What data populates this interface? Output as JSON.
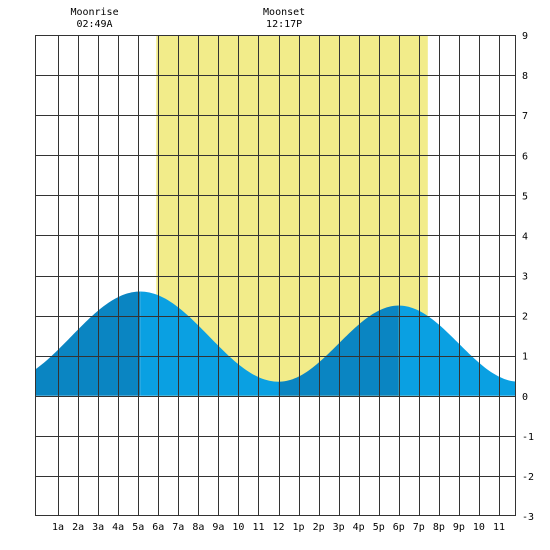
{
  "chart_data": {
    "type": "area",
    "title": "",
    "xlabel": "",
    "ylabel": "",
    "ylim": [
      -3,
      9
    ],
    "y_ticks": [
      "9",
      "8",
      "7",
      "6",
      "5",
      "4",
      "3",
      "2",
      "1",
      "0",
      "-1",
      "-2",
      "-3"
    ],
    "x_tick_labels": [
      "1a",
      "2a",
      "3a",
      "4a",
      "5a",
      "6a",
      "7a",
      "8a",
      "9a",
      "10",
      "11",
      "12",
      "1p",
      "2p",
      "3p",
      "4p",
      "5p",
      "6p",
      "7p",
      "8p",
      "9p",
      "10",
      "11"
    ],
    "x_tick_hours": [
      1,
      2,
      3,
      4,
      5,
      6,
      7,
      8,
      9,
      10,
      11,
      12,
      13,
      14,
      15,
      16,
      17,
      18,
      19,
      20,
      21,
      22,
      23
    ],
    "x_range_hours": [
      -0.15,
      23.85
    ],
    "daylight": {
      "start_hour": 5.9,
      "end_hour": 19.45
    },
    "tide_extremes": [
      {
        "hour": 5.1,
        "height": 2.6,
        "kind": "high"
      },
      {
        "hour": 12.0,
        "height": 0.35,
        "kind": "low"
      },
      {
        "hour": 18.0,
        "height": 2.25,
        "kind": "high"
      }
    ],
    "tide_start": {
      "hour": -0.15,
      "height": 0.8
    },
    "tide_end": {
      "hour": 23.85,
      "height": 0.58
    },
    "moon_events": [
      {
        "label": "Moonrise",
        "time": "02:49A",
        "hour": 2.82
      },
      {
        "label": "Moonset",
        "time": "12:17P",
        "hour": 12.28
      }
    ],
    "grid": true
  },
  "colors": {
    "daylight": "#f2ec8a",
    "tide_rising": "#0a85c2",
    "tide_falling": "#0aa0e2",
    "grid": "#333333",
    "background": "#ffffff"
  }
}
